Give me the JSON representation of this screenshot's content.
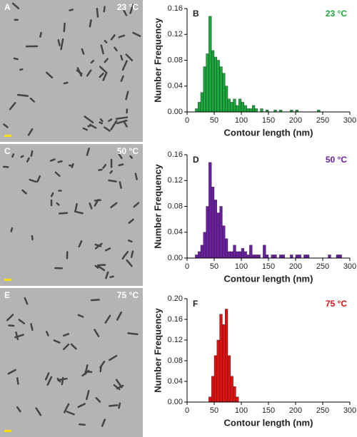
{
  "images": [
    {
      "label": "A",
      "temperature": "23 °C"
    },
    {
      "label": "C",
      "temperature": "50 °C"
    },
    {
      "label": "E",
      "temperature": "75 °C"
    }
  ],
  "chart_data": [
    {
      "type": "histogram",
      "panel": "B",
      "annotation": "23 °C",
      "annotation_color": "#1aa83c",
      "color": "#1aa83c",
      "xlabel": "Contour length (nm)",
      "ylabel": "Number Frequency",
      "bins": [
        15,
        20,
        25,
        30,
        35,
        40,
        45,
        50,
        55,
        60,
        65,
        70,
        75,
        80,
        85,
        90,
        95,
        100,
        105,
        110,
        115,
        120,
        125,
        130,
        135,
        140,
        145,
        150,
        155,
        160,
        165,
        170,
        175,
        180,
        185,
        190,
        195,
        200,
        205,
        210,
        215,
        220,
        225,
        230,
        235,
        240,
        245
      ],
      "counts": [
        0.005,
        0.015,
        0.03,
        0.07,
        0.09,
        0.148,
        0.095,
        0.085,
        0.08,
        0.07,
        0.06,
        0.04,
        0.02,
        0.015,
        0.02,
        0.01,
        0.02,
        0.015,
        0.01,
        0.005,
        0.005,
        0.01,
        0.005,
        0,
        0.005,
        0,
        0.003,
        0,
        0,
        0.003,
        0,
        0.003,
        0,
        0,
        0,
        0.003,
        0,
        0.003,
        0,
        0,
        0,
        0,
        0,
        0,
        0,
        0.003
      ],
      "xlim": [
        0,
        300
      ],
      "xticks": [
        0,
        50,
        100,
        150,
        200,
        250,
        300
      ],
      "ylim": [
        0,
        0.16
      ],
      "yticks": [
        {
          "value": 0,
          "label": "0.00"
        },
        {
          "value": 0.04,
          "label": "0.04"
        },
        {
          "value": 0.08,
          "label": "0.08"
        },
        {
          "value": 0.12,
          "label": "0.12"
        },
        {
          "value": 0.16,
          "label": "0.16"
        }
      ]
    },
    {
      "type": "histogram",
      "panel": "D",
      "annotation": "50 °C",
      "annotation_color": "#6a1fa0",
      "color": "#6a1fa0",
      "xlabel": "Contour length (nm)",
      "ylabel": "Number Frequency",
      "bins": [
        15,
        20,
        25,
        30,
        35,
        40,
        45,
        50,
        55,
        60,
        65,
        70,
        75,
        80,
        85,
        90,
        95,
        100,
        105,
        110,
        115,
        120,
        125,
        130,
        135,
        140,
        145,
        150,
        155,
        160,
        165,
        170,
        175,
        180,
        185,
        190,
        195,
        200,
        205,
        210,
        215,
        220,
        225,
        230,
        235,
        240,
        245,
        250,
        255,
        260,
        265,
        270,
        275,
        280,
        285
      ],
      "counts": [
        0.005,
        0.01,
        0.02,
        0.04,
        0.08,
        0.148,
        0.11,
        0.09,
        0.07,
        0.08,
        0.05,
        0.03,
        0.01,
        0.01,
        0.02,
        0.01,
        0.01,
        0.015,
        0.01,
        0.005,
        0.02,
        0.005,
        0.005,
        0.005,
        0,
        0.02,
        0.005,
        0,
        0.005,
        0.005,
        0,
        0.005,
        0.005,
        0,
        0,
        0.005,
        0,
        0.005,
        0.005,
        0,
        0.005,
        0.005,
        0,
        0,
        0,
        0,
        0,
        0,
        0,
        0.005,
        0,
        0,
        0.005,
        0.005
      ],
      "xlim": [
        0,
        300
      ],
      "xticks": [
        0,
        50,
        100,
        150,
        200,
        250,
        300
      ],
      "ylim": [
        0,
        0.16
      ],
      "yticks": [
        {
          "value": 0,
          "label": "0.00"
        },
        {
          "value": 0.04,
          "label": "0.04"
        },
        {
          "value": 0.08,
          "label": "0.08"
        },
        {
          "value": 0.12,
          "label": "0.12"
        },
        {
          "value": 0.16,
          "label": "0.16"
        }
      ]
    },
    {
      "type": "histogram",
      "panel": "F",
      "annotation": "75 °C",
      "annotation_color": "#e01010",
      "color": "#e01010",
      "xlabel": "Contour length (nm)",
      "ylabel": "Number Frequency",
      "bins": [
        40,
        45,
        50,
        55,
        60,
        65,
        70,
        75,
        80,
        85,
        90,
        95
      ],
      "counts": [
        0.01,
        0.05,
        0.09,
        0.12,
        0.17,
        0.15,
        0.18,
        0.09,
        0.05,
        0.03,
        0.01
      ],
      "xlim": [
        0,
        300
      ],
      "xticks": [
        0,
        50,
        100,
        150,
        200,
        250,
        300
      ],
      "ylim": [
        0,
        0.2
      ],
      "yticks": [
        {
          "value": 0,
          "label": "0.00"
        },
        {
          "value": 0.04,
          "label": "0.04"
        },
        {
          "value": 0.08,
          "label": "0.08"
        },
        {
          "value": 0.12,
          "label": "0.12"
        },
        {
          "value": 0.16,
          "label": "0.16"
        },
        {
          "value": 0.2,
          "label": "0.20"
        }
      ]
    }
  ]
}
